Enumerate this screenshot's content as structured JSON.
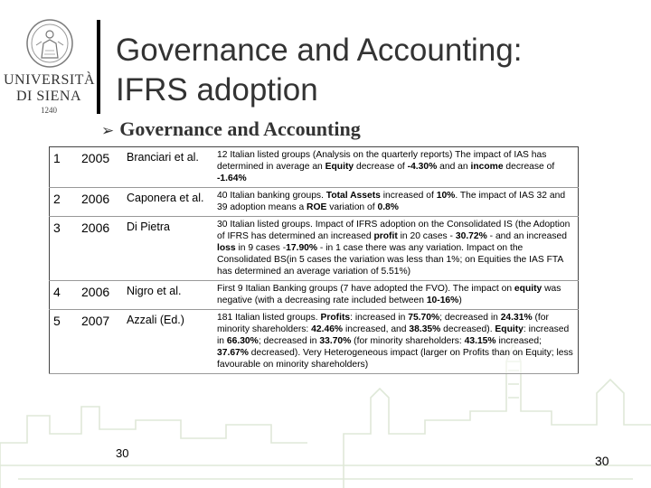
{
  "university": {
    "name_line1": "UNIVERSITÀ",
    "name_line2": "DI SIENA",
    "year": "1240"
  },
  "title": {
    "line1": "Governance and Accounting:",
    "line2": "IFRS adoption"
  },
  "subheading": "Governance and Accounting",
  "rows": [
    {
      "num": "1",
      "year": "2005",
      "author": "Branciari et al.",
      "desc": [
        {
          "t": "12 Italian listed groups (Analysis on the quarterly reports) The impact of IAS has determined in average an "
        },
        {
          "t": "Equity",
          "b": true
        },
        {
          "t": " decrease of "
        },
        {
          "t": "-4.30%",
          "b": true
        },
        {
          "t": " and an "
        },
        {
          "t": "income",
          "b": true
        },
        {
          "t": " decrease of "
        },
        {
          "t": "-1.64%",
          "b": true
        }
      ]
    },
    {
      "num": "2",
      "year": "2006",
      "author": "Caponera et al.",
      "desc": [
        {
          "t": "40 Italian banking groups. "
        },
        {
          "t": "Total Assets",
          "b": true
        },
        {
          "t": " increased of "
        },
        {
          "t": "10%",
          "b": true
        },
        {
          "t": ". The impact of IAS 32 and 39 adoption means a "
        },
        {
          "t": "ROE",
          "b": true
        },
        {
          "t": " variation of "
        },
        {
          "t": "0.8%",
          "b": true
        }
      ]
    },
    {
      "num": "3",
      "year": "2006",
      "author": "Di Pietra",
      "desc": [
        {
          "t": "30 Italian listed groups. Impact of IFRS adoption on the Consolidated IS (the Adoption of IFRS has determined an increased "
        },
        {
          "t": "profit",
          "b": true
        },
        {
          "t": " in 20 cases - "
        },
        {
          "t": "30.72%",
          "b": true
        },
        {
          "t": " - and an increased "
        },
        {
          "t": "loss",
          "b": true
        },
        {
          "t": " in 9 cases -"
        },
        {
          "t": "17.90%",
          "b": true
        },
        {
          "t": " - in 1 case there was any variation. Impact on the Consolidated BS(in 5 cases the variation was less than 1%; on Equities the IAS FTA has determined an average variation of 5.51%)"
        }
      ]
    },
    {
      "num": "4",
      "year": "2006",
      "author": "Nigro et al.",
      "desc": [
        {
          "t": "First 9 Italian Banking groups (7 have adopted the FVO). The impact on "
        },
        {
          "t": "equity",
          "b": true
        },
        {
          "t": " was negative (with a decreasing rate included between "
        },
        {
          "t": "10-16%",
          "b": true
        },
        {
          "t": ")"
        }
      ]
    },
    {
      "num": "5",
      "year": "2007",
      "author": "Azzali (Ed.)",
      "desc": [
        {
          "t": "181 Italian listed groups. "
        },
        {
          "t": "Profits",
          "b": true
        },
        {
          "t": ": increased in "
        },
        {
          "t": "75.70%",
          "b": true
        },
        {
          "t": "; decreased in "
        },
        {
          "t": "24.31%",
          "b": true
        },
        {
          "t": " (for minority shareholders: "
        },
        {
          "t": "42.46%",
          "b": true
        },
        {
          "t": " increased, and "
        },
        {
          "t": "38.35%",
          "b": true
        },
        {
          "t": " decreased). "
        },
        {
          "t": "Equity",
          "b": true
        },
        {
          "t": ": increased in "
        },
        {
          "t": "66.30%",
          "b": true
        },
        {
          "t": "; decreased in "
        },
        {
          "t": "33.70%",
          "b": true
        },
        {
          "t": " (for minority shareholders: "
        },
        {
          "t": "43.15%",
          "b": true
        },
        {
          "t": " increased; "
        },
        {
          "t": "37.67%",
          "b": true
        },
        {
          "t": " decreased). Very Heterogeneous impact (larger on Profits than on Equity; less favourable on minority shareholders)"
        }
      ]
    }
  ],
  "page_inline": "30",
  "page_number": "30"
}
